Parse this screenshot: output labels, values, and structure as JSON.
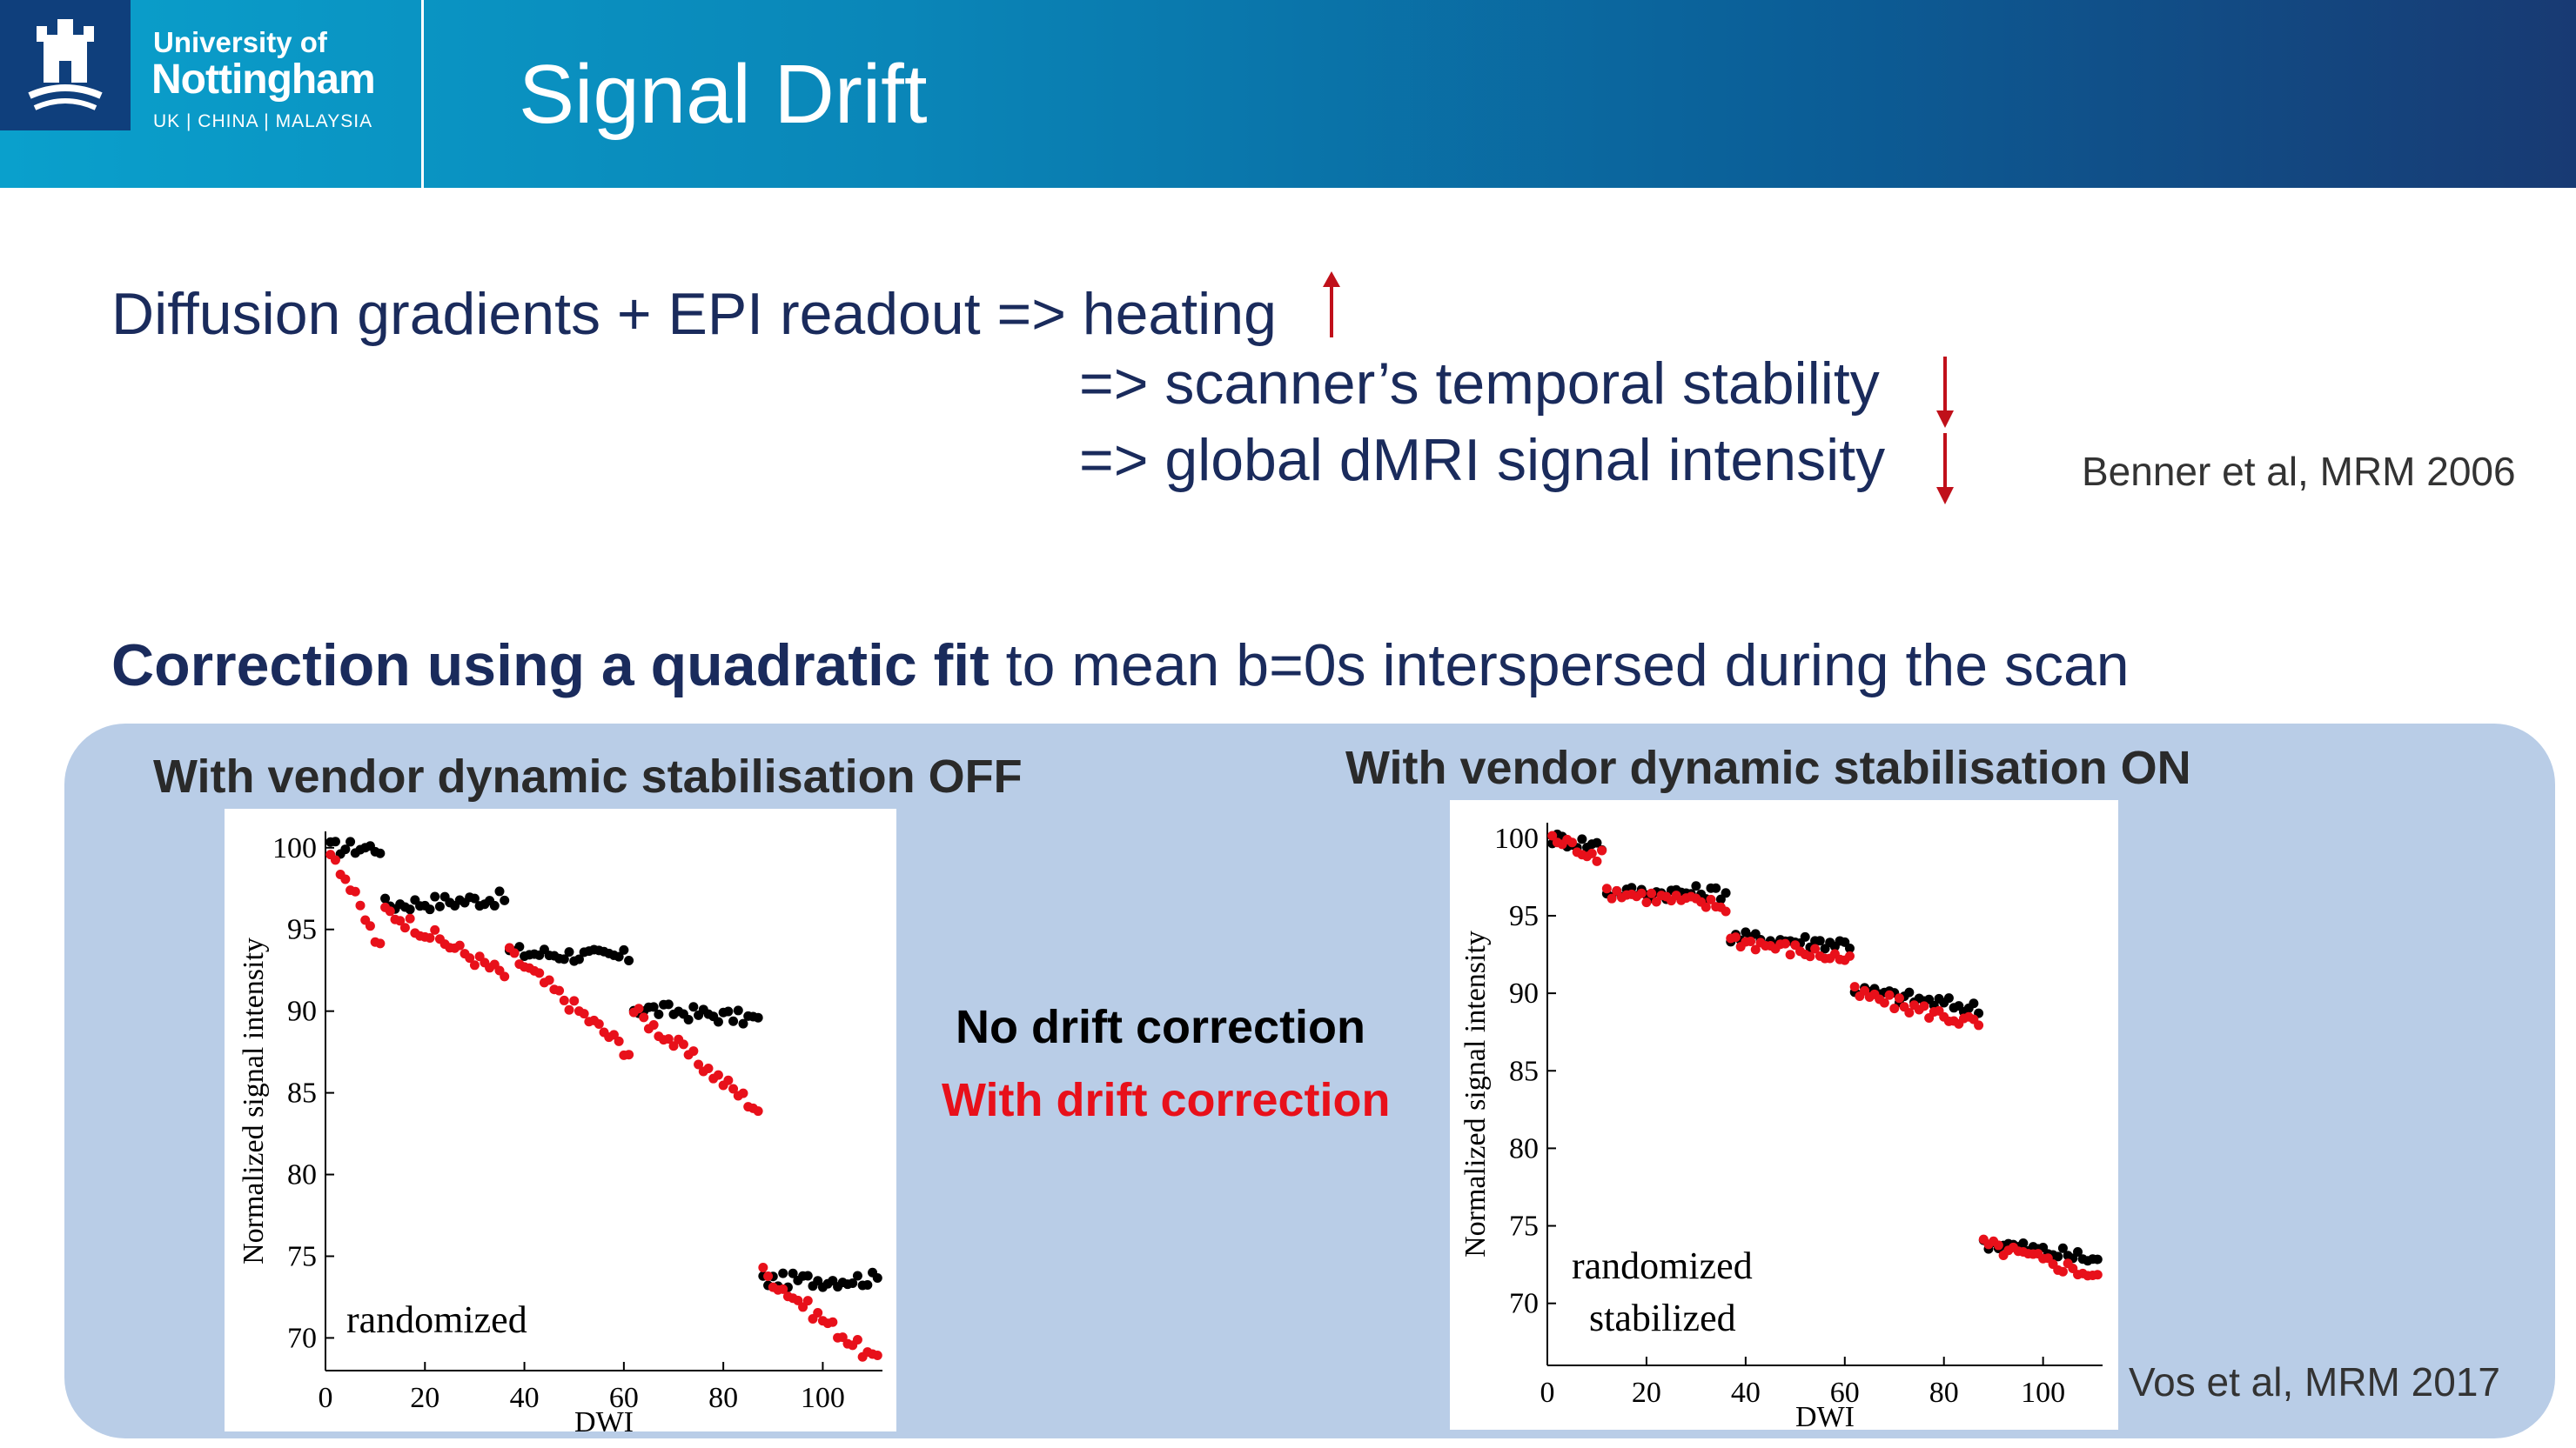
{
  "header": {
    "logo_line1": "University of",
    "logo_line2": "Nottingham",
    "logo_line3": "UK | CHINA | MALAYSIA",
    "title": "Signal Drift"
  },
  "text": {
    "line1": "Diffusion gradients + EPI readout => heating",
    "line2": "=> scanner’s temporal stability",
    "line3": "=> global dMRI signal intensity",
    "ref1": "Benner et al, MRM 2006",
    "correction_bold": "Correction using a quadratic fit",
    "correction_rest": " to mean b=0s interspersed during the scan"
  },
  "panel": {
    "left_title": "With vendor dynamic stabilisation OFF",
    "right_title": "With vendor dynamic stabilisation ON",
    "legend_black": "No drift correction",
    "legend_red": "With drift correction",
    "ref2": "Vos et al, MRM 2017"
  },
  "colors": {
    "heading_text": "#1a2b5c",
    "arrow_red": "#c0101a",
    "panel_bg": "#b9cde7",
    "series_black": "#000000",
    "series_red": "#e8101a"
  },
  "chart_data": [
    {
      "type": "scatter",
      "xlabel": "DWI",
      "ylabel": "Normalized signal intensity",
      "annotation": [
        "randomized"
      ],
      "xlim": [
        0,
        112
      ],
      "ylim": [
        68,
        101
      ],
      "xticks": [
        0,
        20,
        40,
        60,
        80,
        100
      ],
      "yticks": [
        70,
        75,
        80,
        85,
        90,
        95,
        100
      ],
      "series": [
        {
          "name": "No drift correction",
          "color": "#000000",
          "segments": [
            {
              "x0": 1,
              "x1": 11,
              "y0": 100,
              "y1": 100
            },
            {
              "x0": 12,
              "x1": 36,
              "y0": 96.5,
              "y1": 96.9
            },
            {
              "x0": 37,
              "x1": 61,
              "y0": 93.6,
              "y1": 93.3
            },
            {
              "x0": 62,
              "x1": 87,
              "y0": 90.2,
              "y1": 89.5
            },
            {
              "x0": 88,
              "x1": 111,
              "y0": 73.5,
              "y1": 73.6
            }
          ]
        },
        {
          "name": "With drift correction",
          "color": "#e8101a",
          "segments": [
            {
              "x0": 1,
              "x1": 11,
              "y0": 100,
              "y1": 93.8
            },
            {
              "x0": 12,
              "x1": 36,
              "y0": 96.2,
              "y1": 92.2
            },
            {
              "x0": 37,
              "x1": 61,
              "y0": 93.5,
              "y1": 87.5
            },
            {
              "x0": 62,
              "x1": 87,
              "y0": 90.0,
              "y1": 84.0
            },
            {
              "x0": 88,
              "x1": 111,
              "y0": 74.0,
              "y1": 68.5
            }
          ]
        }
      ]
    },
    {
      "type": "scatter",
      "xlabel": "DWI",
      "ylabel": "Normalized signal intensity",
      "annotation": [
        "randomized",
        "stabilized"
      ],
      "xlim": [
        0,
        112
      ],
      "ylim": [
        66,
        101
      ],
      "xticks": [
        0,
        20,
        40,
        60,
        80,
        100
      ],
      "yticks": [
        70,
        75,
        80,
        85,
        90,
        95,
        100
      ],
      "series": [
        {
          "name": "No drift correction",
          "color": "#000000",
          "segments": [
            {
              "x0": 1,
              "x1": 11,
              "y0": 100,
              "y1": 99.5
            },
            {
              "x0": 12,
              "x1": 36,
              "y0": 96.5,
              "y1": 96.5
            },
            {
              "x0": 37,
              "x1": 61,
              "y0": 93.6,
              "y1": 93.2
            },
            {
              "x0": 62,
              "x1": 87,
              "y0": 90.2,
              "y1": 89.0
            },
            {
              "x0": 88,
              "x1": 111,
              "y0": 74.0,
              "y1": 72.8
            }
          ]
        },
        {
          "name": "With drift correction",
          "color": "#e8101a",
          "segments": [
            {
              "x0": 1,
              "x1": 11,
              "y0": 100,
              "y1": 98.8
            },
            {
              "x0": 12,
              "x1": 36,
              "y0": 96.6,
              "y1": 95.6
            },
            {
              "x0": 37,
              "x1": 61,
              "y0": 93.5,
              "y1": 92.2
            },
            {
              "x0": 62,
              "x1": 87,
              "y0": 90.0,
              "y1": 88.0
            },
            {
              "x0": 88,
              "x1": 111,
              "y0": 73.8,
              "y1": 71.8
            }
          ]
        }
      ]
    }
  ]
}
